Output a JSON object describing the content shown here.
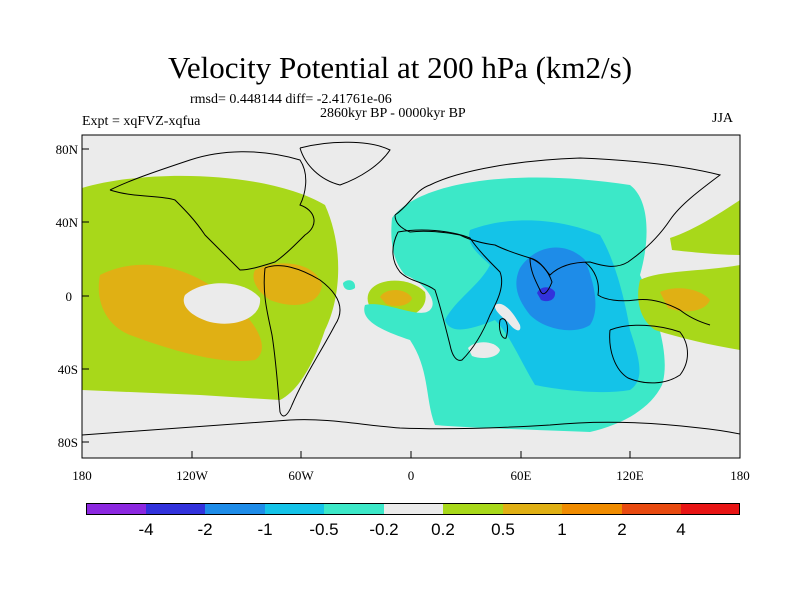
{
  "title": "Velocity Potential at 200 hPa (km2/s)",
  "stats_line": "rmsd= 0.448144 diff= -2.41761e-06",
  "period": "2860kyr BP - 0000kyr BP",
  "experiment": "Expt = xqFVZ-xqfua",
  "season": "JJA",
  "lat_ticks": [
    "80N",
    "40N",
    "0",
    "40S",
    "80S"
  ],
  "lon_ticks": [
    "180",
    "120W",
    "60W",
    "0",
    "60E",
    "120E",
    "180"
  ],
  "colorbar": {
    "colors": [
      "#8c28e0",
      "#3232dc",
      "#1e8ce8",
      "#14c3e8",
      "#3ce8c8",
      "#ebebeb",
      "#a8d81a",
      "#e0b014",
      "#f08c00",
      "#e84a10",
      "#e81414"
    ],
    "labels": [
      "-4",
      "-2",
      "-1",
      "-0.5",
      "-0.2",
      "0.2",
      "0.5",
      "1",
      "2",
      "4"
    ]
  },
  "palette": {
    "ocean_bg": "#ebebeb",
    "pos_weak": "#a8d81a",
    "pos_mid": "#e0b014",
    "neg_weak": "#3ce8c8",
    "neg_mid": "#14c3e8",
    "neg_strong": "#1e8ce8",
    "neg_max": "#3232dc"
  }
}
